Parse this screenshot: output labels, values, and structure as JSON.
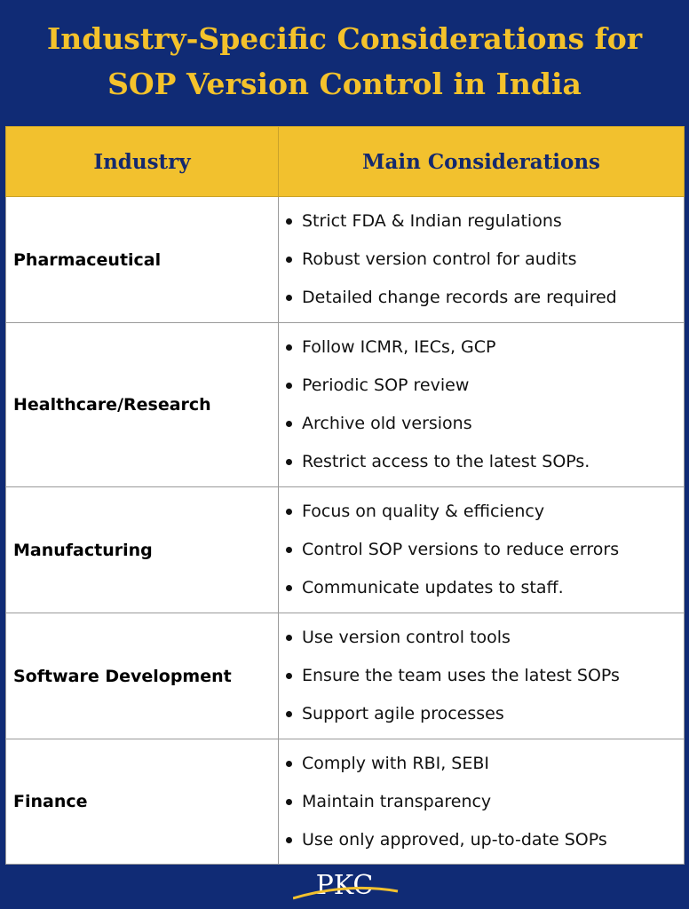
{
  "title": "Industry-Specific Considerations for SOP Version Control in India",
  "table": {
    "header": [
      "Industry",
      "Main Considerations"
    ],
    "rows": [
      {
        "industry": "Pharmaceutical",
        "considerations": [
          "Strict FDA & Indian regulations",
          "Robust version control for audits",
          "Detailed change records are required"
        ]
      },
      {
        "industry": "Healthcare/Research",
        "considerations": [
          "Follow ICMR, IECs, GCP",
          "Periodic SOP review",
          "Archive old versions",
          "Restrict access to the latest SOPs."
        ]
      },
      {
        "industry": "Manufacturing",
        "considerations": [
          "Focus on quality & efficiency",
          "Control SOP versions to reduce errors",
          "Communicate updates to staff."
        ]
      },
      {
        "industry": "Software Development",
        "considerations": [
          "Use version control tools",
          "Ensure the team uses the latest SOPs",
          "Support agile processes"
        ]
      },
      {
        "industry": "Finance",
        "considerations": [
          "Comply with RBI, SEBI",
          "Maintain transparency",
          "Use only approved, up-to-date SOPs"
        ]
      }
    ]
  },
  "logo": "PKC"
}
